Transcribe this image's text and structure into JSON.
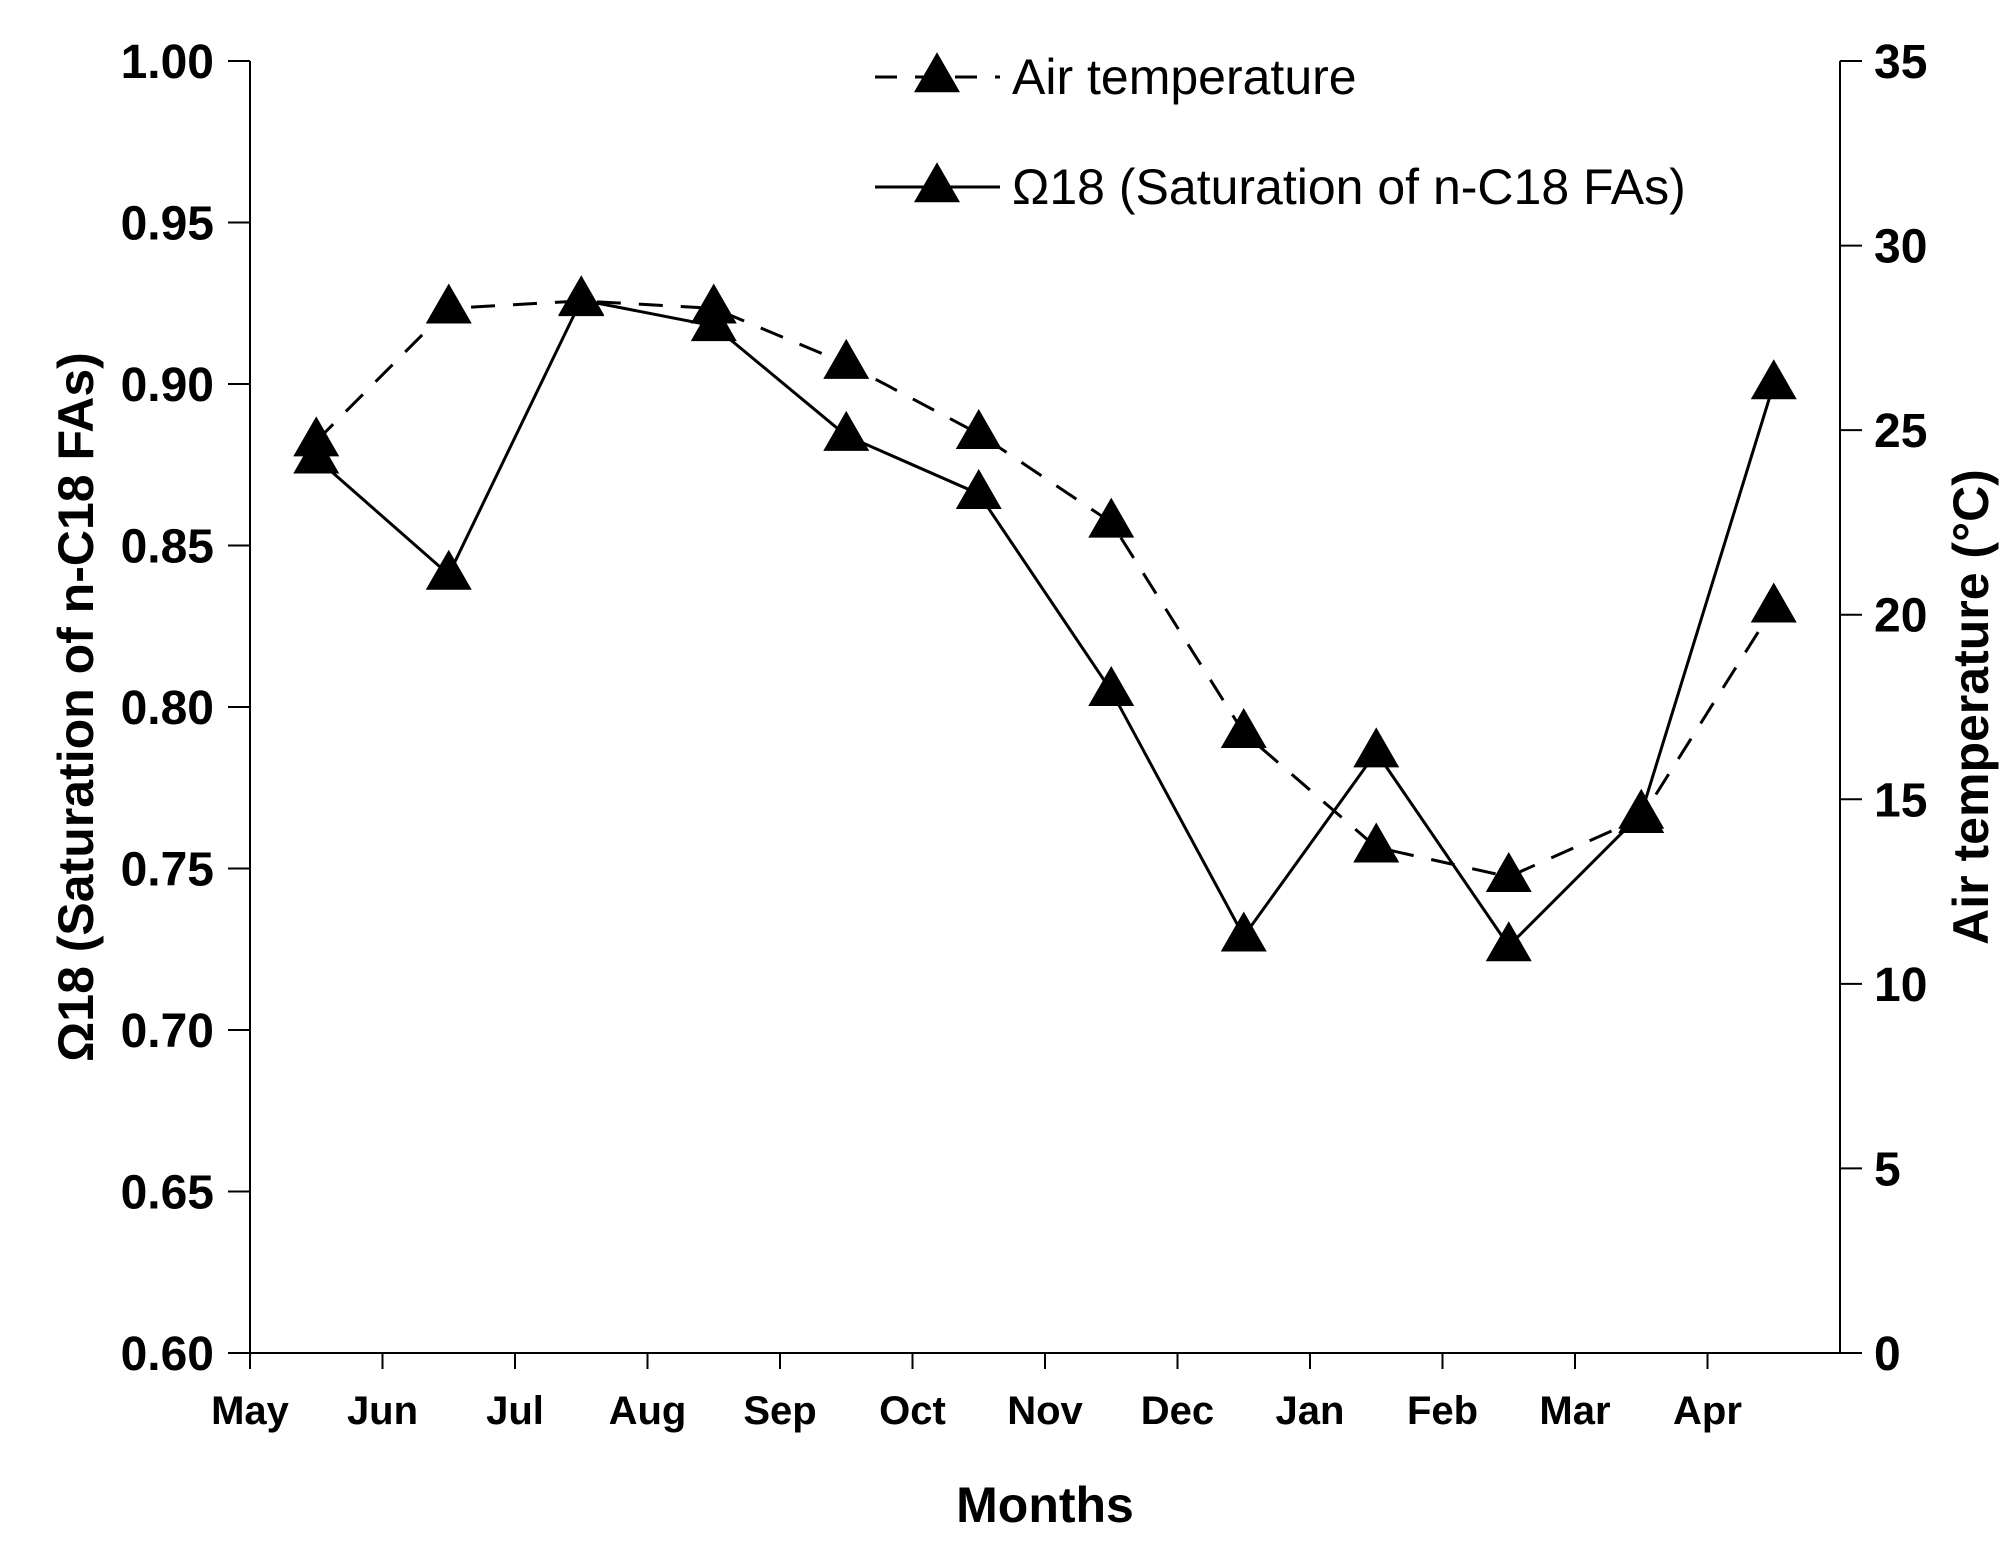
{
  "chart_data": {
    "type": "line",
    "title": "",
    "xlabel": "Months",
    "ylabel": "Ω18 (Saturation of n-C18 FAs)",
    "y2label": "Air temperature (°C)",
    "ylim": [
      0.6,
      1.0
    ],
    "y2lim": [
      0,
      35
    ],
    "month_ticks": [
      "May",
      "Jun",
      "Jul",
      "Aug",
      "Sep",
      "Oct",
      "Nov",
      "Dec",
      "Jan",
      "Feb",
      "Mar",
      "Apr"
    ],
    "yticks": [
      "0.60",
      "0.65",
      "0.70",
      "0.75",
      "0.80",
      "0.85",
      "0.90",
      "0.95",
      "1.00"
    ],
    "y2ticks": [
      "0",
      "5",
      "10",
      "15",
      "20",
      "25",
      "30",
      "35"
    ],
    "legend_position": "top-right",
    "series": [
      {
        "name": "Air temperature",
        "axis": "right",
        "line_style": "dashed",
        "marker": "triangle",
        "x": [
          0.5,
          1.5,
          2.5,
          3.5,
          4.5,
          5.5,
          6.5,
          7.5,
          8.5,
          9.5,
          10.5,
          11.5
        ],
        "values": [
          24.7,
          28.3,
          28.5,
          28.3,
          26.8,
          24.9,
          22.5,
          16.8,
          13.7,
          12.9,
          14.5,
          20.2
        ]
      },
      {
        "name": "Ω18 (Saturation of n-C18 FAs)",
        "axis": "left",
        "line_style": "solid",
        "marker": "triangle",
        "x": [
          0.5,
          1.5,
          2.5,
          3.5,
          4.5,
          5.5,
          6.5,
          7.5,
          8.5,
          9.5,
          10.5,
          11.5
        ],
        "values": [
          0.877,
          0.841,
          0.926,
          0.918,
          0.884,
          0.866,
          0.805,
          0.729,
          0.786,
          0.726,
          0.767,
          0.9
        ]
      }
    ]
  }
}
